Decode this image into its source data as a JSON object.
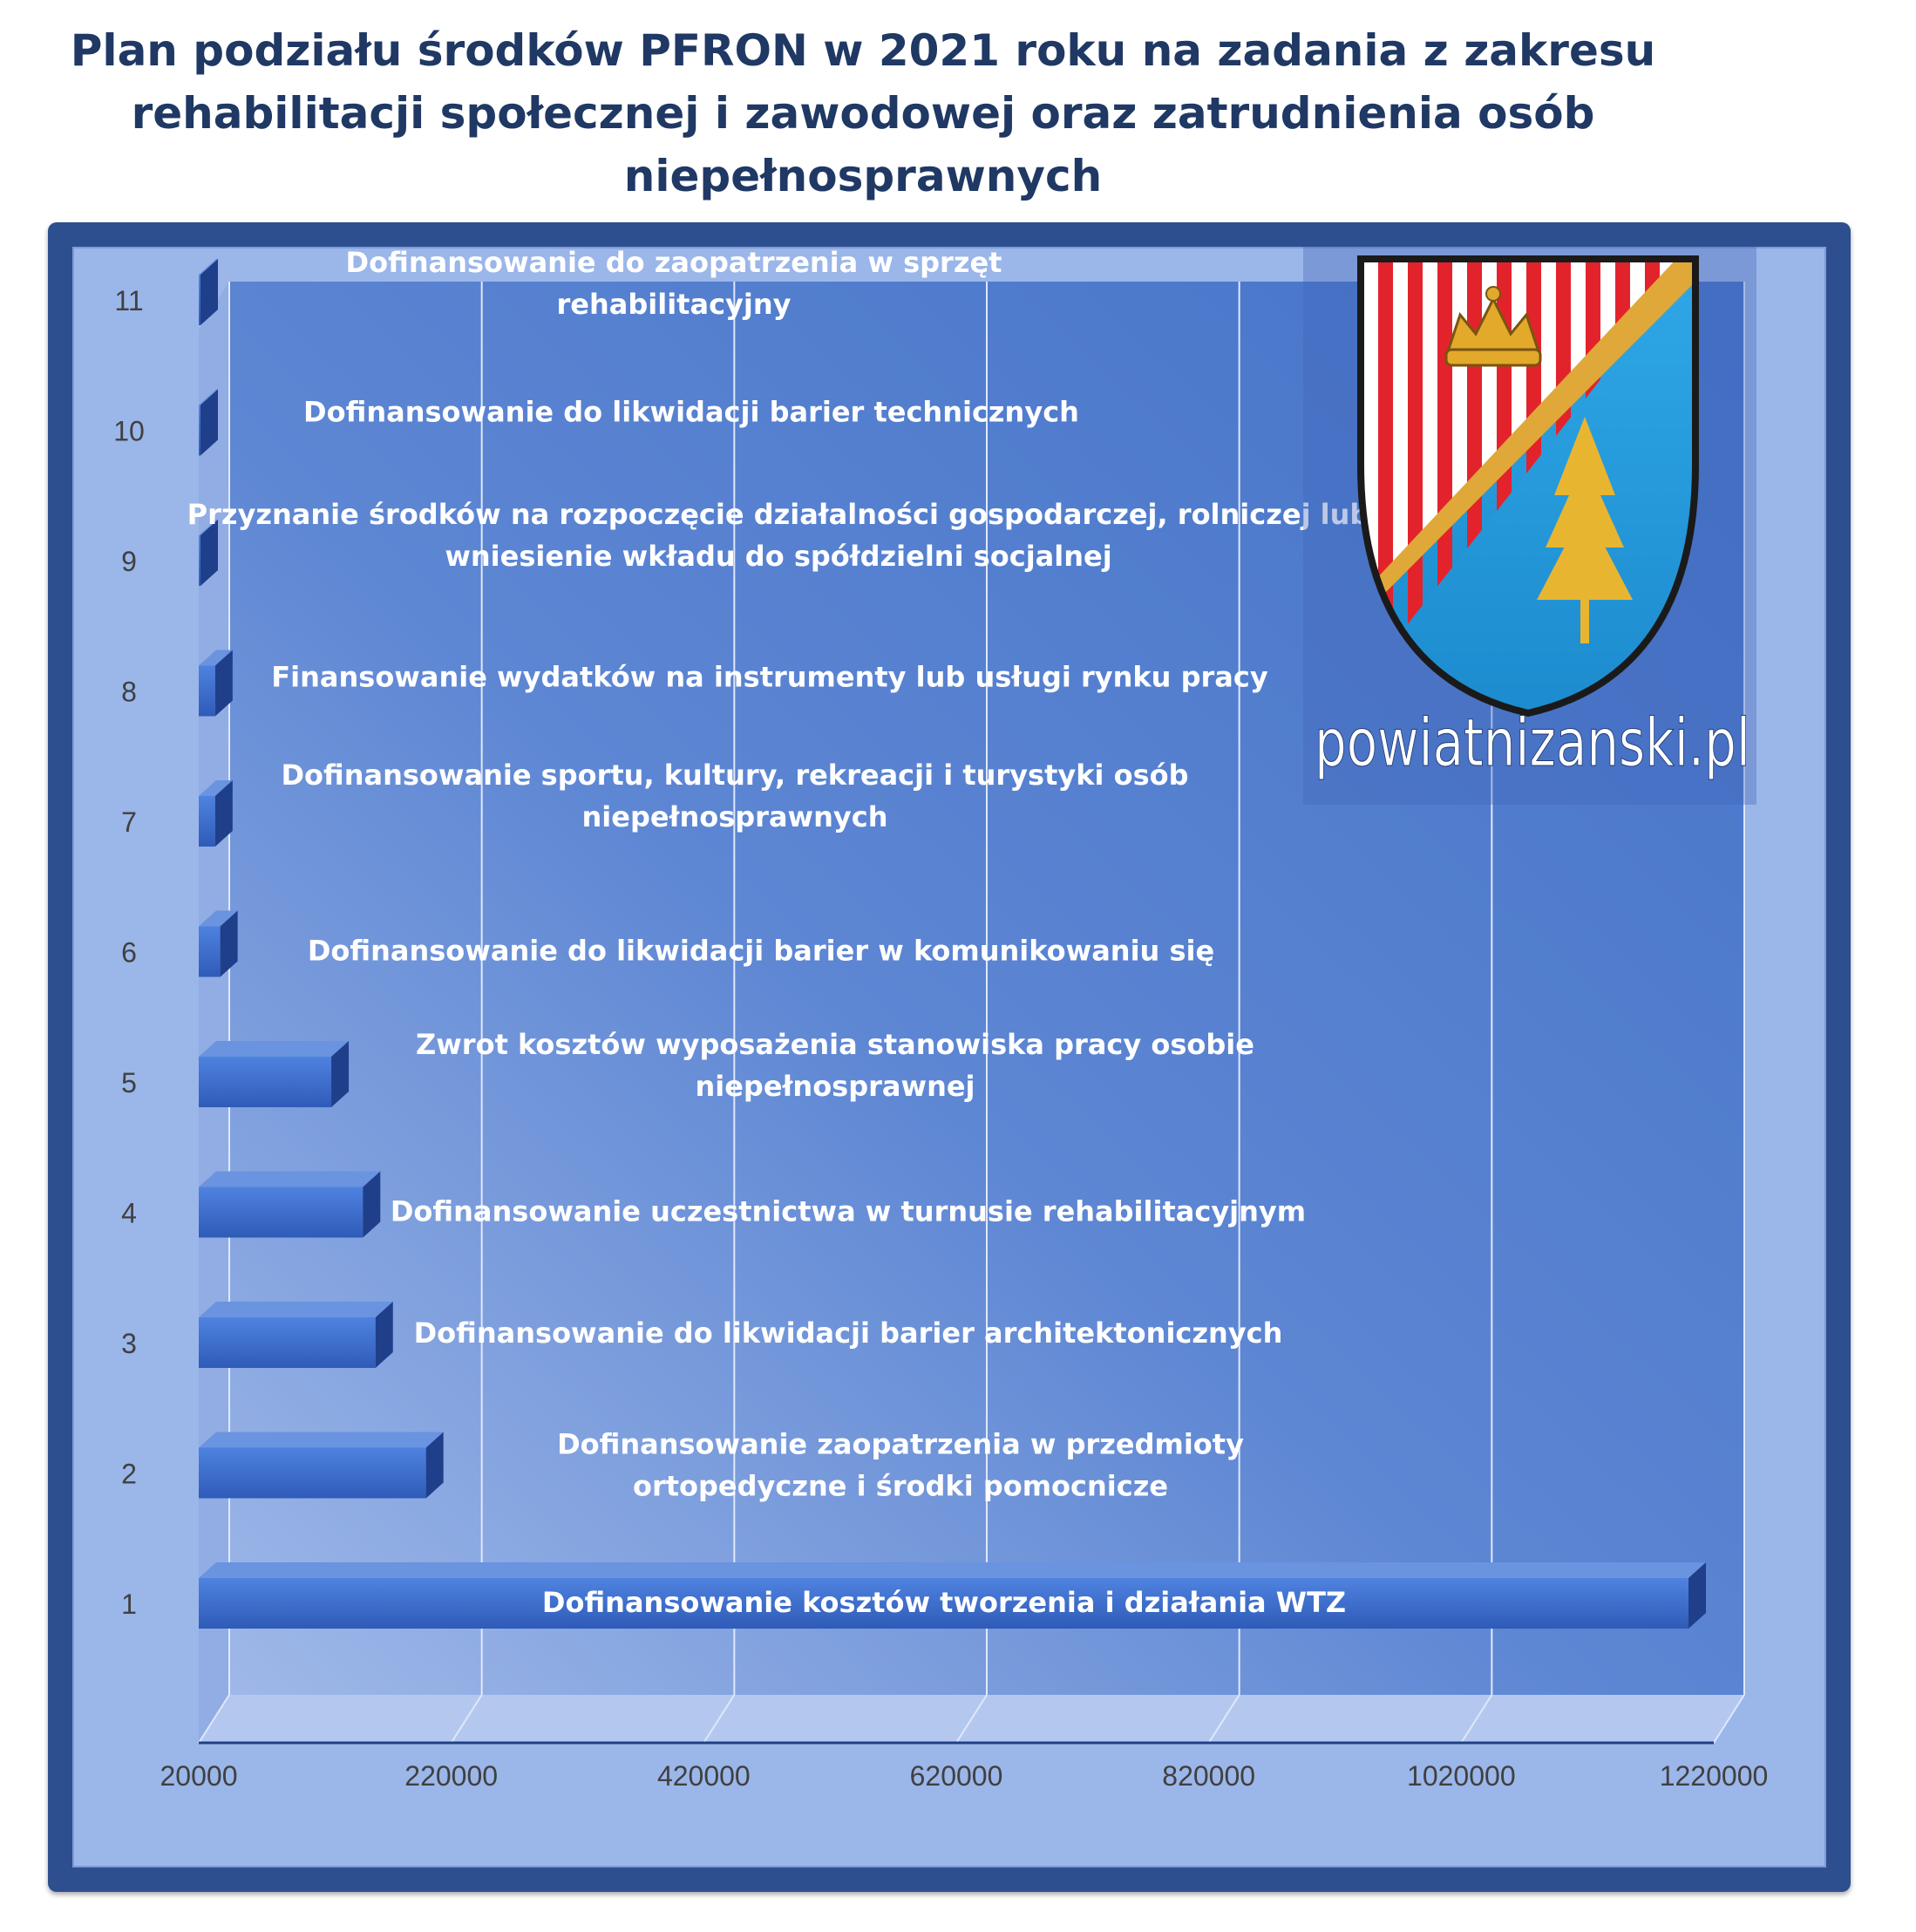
{
  "title_lines": [
    "Plan podziału środków PFRON w 2021 roku na zadania z zakresu",
    "rehabilitacji społecznej i zawodowej oraz zatrudnienia osób",
    "niepełnosprawnych"
  ],
  "logo": {
    "text": "powiatnizanski.pl"
  },
  "chart_data": {
    "type": "bar",
    "orientation": "horizontal",
    "style": "3d",
    "title": "Plan podziału środków PFRON w 2021 roku na zadania z zakresu rehabilitacji społecznej i zawodowej oraz zatrudnienia osób niepełnosprawnych",
    "xlim": [
      20000,
      1220000
    ],
    "x_ticks": [
      "20000",
      "220000",
      "420000",
      "620000",
      "820000",
      "1020000",
      "1220000"
    ],
    "grid": true,
    "legend": "none",
    "categories": [
      "1",
      "2",
      "3",
      "4",
      "5",
      "6",
      "7",
      "8",
      "9",
      "10",
      "11"
    ],
    "values": [
      1200000,
      200000,
      160000,
      150000,
      125000,
      37000,
      33000,
      33000,
      20000,
      5000,
      5000
    ],
    "labels": [
      [
        "Dofinansowanie kosztów tworzenia i działania WTZ"
      ],
      [
        "Dofinansowanie zaopatrzenia w przedmioty",
        "ortopedyczne i środki pomocnicze"
      ],
      [
        "Dofinansowanie do likwidacji barier architektonicznych"
      ],
      [
        "Dofinansowanie uczestnictwa w turnusie rehabilitacyjnym"
      ],
      [
        "Zwrot kosztów wyposażenia stanowiska pracy osobie",
        "niepełnosprawnej"
      ],
      [
        "Dofinansowanie do likwidacji barier w komunikowaniu się"
      ],
      [
        "Dofinansowanie sportu, kultury, rekreacji i turystyki osób",
        "niepełnosprawnych"
      ],
      [
        "Finansowanie wydatków na instrumenty lub usługi rynku pracy"
      ],
      [
        "Przyznanie środków na rozpoczęcie działalności gospodarczej, rolniczej lub",
        "wniesienie wkładu do spółdzielni socjalnej"
      ],
      [
        "Dofinansowanie do likwidacji barier technicznych"
      ],
      [
        "Dofinansowanie  do zaopatrzenia w sprzęt",
        "rehabilitacyjny"
      ]
    ],
    "colors": {
      "bar_front": "#3a68c8",
      "bar_top": "#6a93e0",
      "bar_side": "#1f3f8a",
      "wall": "#4f7fd0",
      "text": "#ffffff",
      "title": "#1f3864"
    }
  }
}
